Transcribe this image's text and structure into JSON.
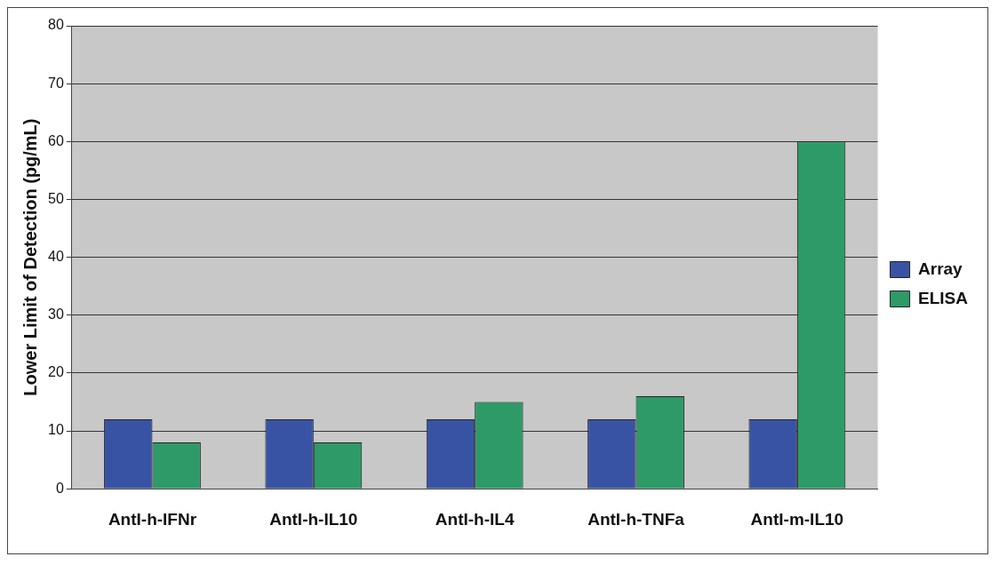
{
  "chart_data": {
    "type": "bar",
    "ylabel": "Lower Limit of Detection (pg/mL)",
    "categories": [
      "AntI-h-IFNr",
      "AntI-h-IL10",
      "AntI-h-IL4",
      "AntI-h-TNFa",
      "AntI-m-IL10"
    ],
    "series": [
      {
        "name": "Array",
        "color": "#3953a4",
        "values": [
          12,
          12,
          12,
          12,
          12
        ]
      },
      {
        "name": "ELISA",
        "color": "#2e9a68",
        "values": [
          8,
          8,
          15,
          16,
          60
        ]
      }
    ],
    "ylim": [
      0,
      80
    ],
    "yticks": [
      0,
      10,
      20,
      30,
      40,
      50,
      60,
      70,
      80
    ],
    "grid": "y",
    "legend": "right"
  }
}
